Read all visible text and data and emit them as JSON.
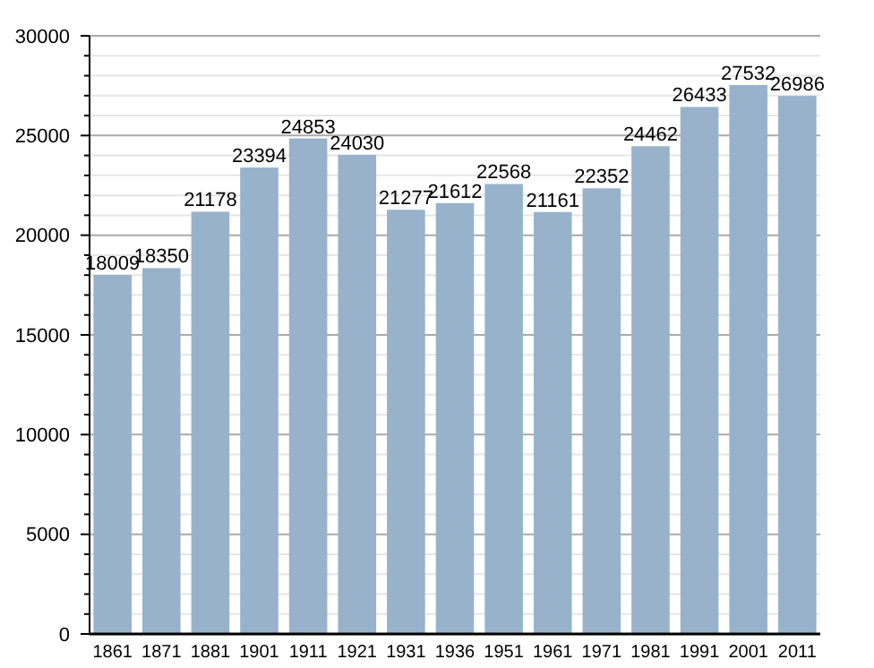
{
  "chart_data": {
    "type": "bar",
    "categories": [
      "1861",
      "1871",
      "1881",
      "1901",
      "1911",
      "1921",
      "1931",
      "1936",
      "1951",
      "1961",
      "1971",
      "1981",
      "1991",
      "2001",
      "2011"
    ],
    "values": [
      18009,
      18350,
      21178,
      23394,
      24853,
      24030,
      21277,
      21612,
      22568,
      21161,
      22352,
      24462,
      26433,
      27532,
      26986
    ],
    "color": "#98b2cc",
    "data_labels": true,
    "grid": "y",
    "ylim": [
      0,
      30000
    ],
    "yticks": [
      0,
      {
        "value": 1000,
        "label": null
      },
      {
        "value": 2000,
        "label": null
      },
      {
        "value": 3000,
        "label": null
      },
      {
        "value": 4000,
        "label": null
      },
      5000,
      {
        "value": 6000,
        "label": null
      },
      {
        "value": 7000,
        "label": null
      },
      {
        "value": 8000,
        "label": null
      },
      {
        "value": 9000,
        "label": null
      },
      10000,
      {
        "value": 11000,
        "label": null
      },
      {
        "value": 12000,
        "label": null
      },
      {
        "value": 13000,
        "label": null
      },
      {
        "value": 14000,
        "label": null
      },
      15000,
      {
        "value": 16000,
        "label": null
      },
      {
        "value": 17000,
        "label": null
      },
      {
        "value": 18000,
        "label": null
      },
      {
        "value": 19000,
        "label": null
      },
      20000,
      {
        "value": 21000,
        "label": null
      },
      {
        "value": 22000,
        "label": null
      },
      {
        "value": 23000,
        "label": null
      },
      {
        "value": 24000,
        "label": null
      },
      25000,
      {
        "value": 26000,
        "label": null
      },
      {
        "value": 27000,
        "label": null
      },
      {
        "value": 28000,
        "label": null
      },
      {
        "value": 29000,
        "label": null
      },
      30000
    ]
  }
}
